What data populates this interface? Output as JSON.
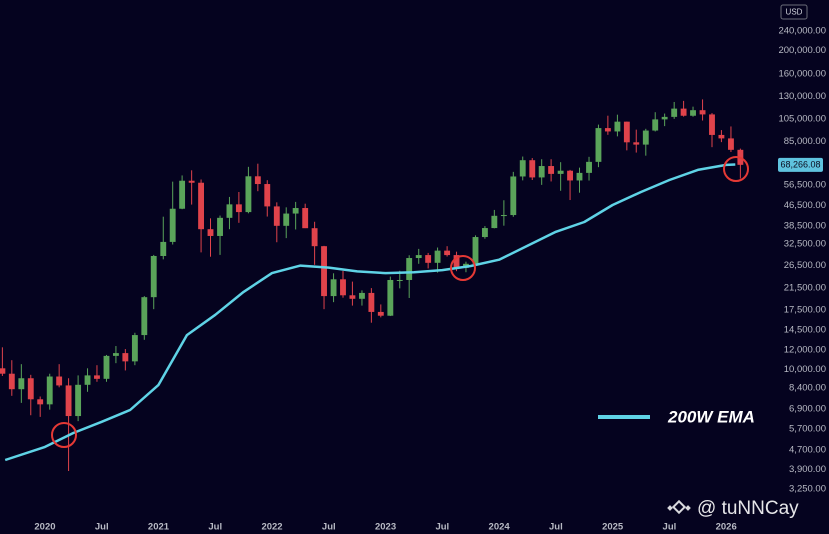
{
  "chart_data": {
    "type": "candlestick",
    "currency": "USD",
    "log_scale": true,
    "grid": false,
    "up_color": "#5aa45a",
    "down_color": "#e0434b",
    "xlim": [
      2019.604,
      2026.43
    ],
    "ylim": [
      2430,
      321000
    ],
    "xticks": [
      {
        "value": 2020,
        "label": "2020"
      },
      {
        "value": 2020.5,
        "label": "Jul"
      },
      {
        "value": 2021,
        "label": "2021"
      },
      {
        "value": 2021.5,
        "label": "Jul"
      },
      {
        "value": 2022,
        "label": "2022"
      },
      {
        "value": 2022.5,
        "label": "Jul"
      },
      {
        "value": 2023,
        "label": "2023"
      },
      {
        "value": 2023.5,
        "label": "Jul"
      },
      {
        "value": 2024,
        "label": "2024"
      },
      {
        "value": 2024.5,
        "label": "Jul"
      },
      {
        "value": 2025,
        "label": "2025"
      },
      {
        "value": 2025.5,
        "label": "Jul"
      },
      {
        "value": 2026,
        "label": "2026"
      }
    ],
    "yticks": [
      {
        "value": 240000,
        "label": "240,000.00"
      },
      {
        "value": 200000,
        "label": "200,000.00"
      },
      {
        "value": 160000,
        "label": "160,000.00"
      },
      {
        "value": 130000,
        "label": "130,000.00"
      },
      {
        "value": 105000,
        "label": "105,000.00"
      },
      {
        "value": 85000,
        "label": "85,000.00"
      },
      {
        "value": 56500,
        "label": "56,500.00"
      },
      {
        "value": 46500,
        "label": "46,500.00"
      },
      {
        "value": 38500,
        "label": "38,500.00"
      },
      {
        "value": 32500,
        "label": "32,500.00"
      },
      {
        "value": 26500,
        "label": "26,500.00"
      },
      {
        "value": 21500,
        "label": "21,500.00"
      },
      {
        "value": 17500,
        "label": "17,500.00"
      },
      {
        "value": 14500,
        "label": "14,500.00"
      },
      {
        "value": 12000,
        "label": "12,000.00"
      },
      {
        "value": 10000,
        "label": "10,000.00"
      },
      {
        "value": 8400,
        "label": "8,400.00"
      },
      {
        "value": 6900,
        "label": "6,900.00"
      },
      {
        "value": 5700,
        "label": "5,700.00"
      },
      {
        "value": 4700,
        "label": "4,700.00"
      },
      {
        "value": 3900,
        "label": "3,900.00"
      },
      {
        "value": 3250,
        "label": "3,250.00"
      }
    ],
    "last_price": {
      "value": 68266.08,
      "label": "68,266.08"
    },
    "x": [
      2019.625,
      2019.708,
      2019.792,
      2019.875,
      2019.958,
      2020.042,
      2020.125,
      2020.208,
      2020.292,
      2020.375,
      2020.458,
      2020.542,
      2020.625,
      2020.708,
      2020.792,
      2020.875,
      2020.958,
      2021.042,
      2021.125,
      2021.208,
      2021.292,
      2021.375,
      2021.458,
      2021.542,
      2021.625,
      2021.708,
      2021.792,
      2021.875,
      2021.958,
      2022.042,
      2022.125,
      2022.208,
      2022.292,
      2022.375,
      2022.458,
      2022.542,
      2022.625,
      2022.708,
      2022.792,
      2022.875,
      2022.958,
      2023.042,
      2023.125,
      2023.208,
      2023.292,
      2023.375,
      2023.458,
      2023.542,
      2023.625,
      2023.708,
      2023.792,
      2023.875,
      2023.958,
      2024.042,
      2024.125,
      2024.208,
      2024.292,
      2024.375,
      2024.458,
      2024.542,
      2024.625,
      2024.708,
      2024.792,
      2024.875,
      2024.958,
      2025.042,
      2025.125,
      2025.208,
      2025.292,
      2025.375,
      2025.458,
      2025.542,
      2025.625,
      2025.708,
      2025.792,
      2025.875,
      2025.958,
      2026.042,
      2026.125
    ],
    "open": [
      10100,
      9600,
      8300,
      9200,
      7550,
      7200,
      9350,
      8600,
      6450,
      8650,
      9450,
      9150,
      11350,
      11650,
      10780,
      13800,
      19700,
      29000,
      33100,
      45200,
      58800,
      57700,
      37300,
      35000,
      41500,
      47100,
      43800,
      61300,
      57000,
      46200,
      38500,
      43200,
      45500,
      37650,
      31800,
      19900,
      23300,
      20050,
      19400,
      20500,
      17150,
      16550,
      23150,
      23150,
      28450,
      29250,
      27200,
      30500,
      29250,
      25950,
      26950,
      34650,
      37700,
      42300,
      42600,
      61200,
      71300,
      60650,
      67500,
      62700,
      64600,
      58950,
      63300,
      70200,
      96400,
      93400,
      102400,
      84350,
      82550,
      94200,
      104600,
      107100,
      115750,
      108250,
      114050,
      109600,
      90400,
      87500,
      78600
    ],
    "high": [
      12300,
      10900,
      10500,
      9500,
      7750,
      9600,
      10500,
      9200,
      9450,
      10100,
      10400,
      11450,
      12450,
      12100,
      14100,
      19900,
      29300,
      41950,
      58300,
      61800,
      64850,
      59500,
      41300,
      42400,
      50500,
      52900,
      67000,
      69000,
      59100,
      48000,
      45800,
      48200,
      47400,
      40000,
      31900,
      24650,
      25200,
      22800,
      21000,
      21450,
      18400,
      23900,
      25250,
      29200,
      31000,
      29850,
      31400,
      31800,
      30200,
      27500,
      35200,
      38400,
      44700,
      48950,
      63900,
      73800,
      72750,
      71950,
      71950,
      70000,
      65100,
      66500,
      73600,
      99600,
      108300,
      109350,
      102500,
      95000,
      95750,
      111900,
      110500,
      123200,
      124450,
      117900,
      126200,
      111000,
      94600,
      97900,
      79500
    ],
    "low": [
      9400,
      7800,
      7300,
      6500,
      6400,
      6850,
      8450,
      3850,
      6150,
      8100,
      8900,
      8900,
      10600,
      9900,
      10400,
      13200,
      17600,
      28100,
      32300,
      45000,
      47000,
      30000,
      28800,
      29300,
      37300,
      39600,
      43300,
      53300,
      42000,
      33000,
      34300,
      37200,
      37700,
      26700,
      17600,
      18800,
      19600,
      18200,
      18200,
      15500,
      16300,
      16500,
      21400,
      19550,
      26950,
      25800,
      24800,
      28850,
      25150,
      24900,
      26550,
      34100,
      37600,
      38550,
      41900,
      59000,
      59200,
      56550,
      58400,
      53500,
      49050,
      52550,
      58900,
      66800,
      90500,
      89200,
      78200,
      76600,
      74400,
      93400,
      98200,
      105100,
      107350,
      107250,
      103500,
      80600,
      84500,
      77000,
      60000
    ],
    "close": [
      9600,
      8300,
      9200,
      7550,
      7200,
      9350,
      8600,
      6450,
      8650,
      9450,
      9150,
      11350,
      11650,
      10780,
      13800,
      19700,
      29000,
      33100,
      45200,
      58800,
      57700,
      37300,
      35000,
      41500,
      47100,
      43800,
      61300,
      57000,
      46200,
      38500,
      43200,
      45500,
      37650,
      31800,
      19900,
      23300,
      20050,
      19400,
      20500,
      17150,
      16550,
      23150,
      23150,
      28450,
      29250,
      27200,
      30500,
      29250,
      25950,
      26950,
      34650,
      37700,
      42300,
      42600,
      61200,
      71300,
      60650,
      67500,
      62700,
      64600,
      58950,
      63300,
      70200,
      96400,
      93400,
      102400,
      84350,
      82550,
      94200,
      104600,
      107100,
      115750,
      108250,
      114050,
      109600,
      90400,
      87500,
      78600,
      68266.08
    ],
    "lines": [
      {
        "name": "200W EMA",
        "color": "#5fd3e6",
        "x": [
          2019.65,
          2020.0,
          2020.25,
          2020.5,
          2020.75,
          2021.0,
          2021.25,
          2021.5,
          2021.75,
          2022.0,
          2022.25,
          2022.5,
          2022.75,
          2023.0,
          2023.25,
          2023.5,
          2023.75,
          2024.0,
          2024.25,
          2024.5,
          2024.75,
          2025.0,
          2025.25,
          2025.5,
          2025.75,
          2026.0,
          2026.08
        ],
        "values": [
          4270,
          4830,
          5500,
          6110,
          6830,
          8640,
          13800,
          16700,
          20700,
          24700,
          26500,
          26000,
          25100,
          24700,
          24900,
          25400,
          26400,
          28000,
          31900,
          36400,
          39900,
          46800,
          52900,
          59200,
          65100,
          68200,
          68500
        ]
      }
    ],
    "watermark": "@ tuNNCay"
  }
}
